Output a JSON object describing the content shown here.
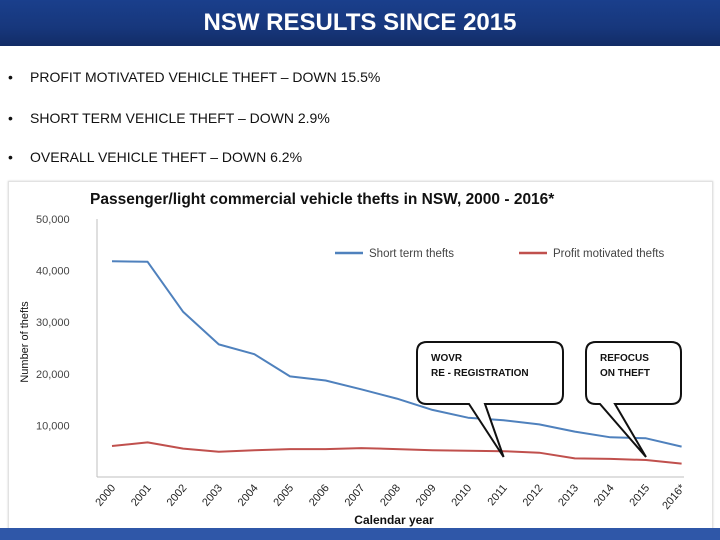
{
  "slide": {
    "title": "NSW RESULTS SINCE 2015",
    "bullets": [
      {
        "marker": "•",
        "text": "PROFIT MOTIVATED VEHICLE THEFT – DOWN 15.5%"
      },
      {
        "marker": "•",
        "text": "SHORT TERM VEHICLE THEFT – DOWN 2.9%"
      },
      {
        "marker": "•",
        "text": "OVERALL VEHICLE THEFT – DOWN 6.2%"
      }
    ],
    "colors": {
      "header": "#17377c",
      "footer": "#2f57a8"
    }
  },
  "chart_data": {
    "type": "line",
    "title": "Passenger/light commercial vehicle thefts in NSW, 2000 - 2016*",
    "xlabel": "Calendar year",
    "ylabel": "Number of thefts",
    "categories": [
      "2000",
      "2001",
      "2002",
      "2003",
      "2004",
      "2005",
      "2006",
      "2007",
      "2008",
      "2009",
      "2010",
      "2011",
      "2012",
      "2013",
      "2014",
      "2015",
      "2016*"
    ],
    "yticks": [
      "10,000",
      "20,000",
      "30,000",
      "40,000",
      "50,000"
    ],
    "ytick_values": [
      10000,
      20000,
      30000,
      40000,
      50000
    ],
    "ylim": [
      0,
      50000
    ],
    "grid": false,
    "legend_position": "top-right",
    "series": [
      {
        "name": "Short term thefts",
        "color": "#4f81bd",
        "values": [
          41800,
          41700,
          32000,
          25700,
          23800,
          19500,
          18700,
          17000,
          15200,
          13000,
          11500,
          11000,
          10200,
          8800,
          7700,
          7500,
          5900
        ]
      },
      {
        "name": "Profit motivated thefts",
        "color": "#c0504d",
        "values": [
          6000,
          6700,
          5500,
          4900,
          5200,
          5400,
          5400,
          5600,
          5400,
          5200,
          5100,
          5000,
          4700,
          3600,
          3500,
          3300,
          2600
        ]
      }
    ],
    "annotations": [
      {
        "lines": [
          "WOVR",
          "RE - REGISTRATION"
        ],
        "year": "2011"
      },
      {
        "lines": [
          "REFOCUS",
          "ON THEFT"
        ],
        "year": "2015"
      }
    ]
  }
}
